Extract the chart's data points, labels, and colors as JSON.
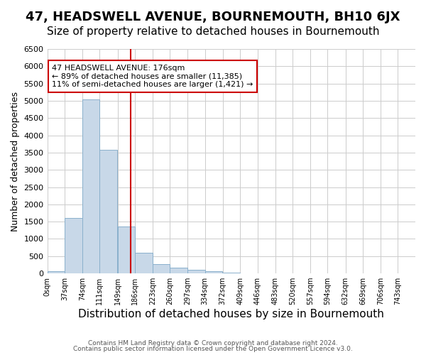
{
  "title": "47, HEADSWELL AVENUE, BOURNEMOUTH, BH10 6JX",
  "subtitle": "Size of property relative to detached houses in Bournemouth",
  "xlabel": "Distribution of detached houses by size in Bournemouth",
  "ylabel": "Number of detached properties",
  "footnote1": "Contains HM Land Registry data © Crown copyright and database right 2024.",
  "footnote2": "Contains public sector information licensed under the Open Government Licence v3.0.",
  "annotation_line1": "47 HEADSWELL AVENUE: 176sqm",
  "annotation_line2": "← 89% of detached houses are smaller (11,385)",
  "annotation_line3": "11% of semi-detached houses are larger (1,421) →",
  "property_size": 176,
  "bar_left_edges": [
    0,
    37,
    74,
    111,
    149,
    186,
    223,
    260,
    297,
    334,
    372,
    409,
    446,
    483,
    520,
    557,
    594,
    632,
    669,
    706,
    743
  ],
  "bar_values": [
    70,
    1600,
    5050,
    3580,
    1350,
    600,
    260,
    170,
    110,
    60,
    30,
    10,
    0,
    0,
    0,
    0,
    0,
    0,
    0,
    0
  ],
  "bar_color": "#c8d8e8",
  "bar_edge_color": "#8ab0cc",
  "vline_color": "#cc0000",
  "vline_x": 176,
  "annotation_box_color": "#cc0000",
  "ylim": [
    0,
    6500
  ],
  "yticks": [
    0,
    500,
    1000,
    1500,
    2000,
    2500,
    3000,
    3500,
    4000,
    4500,
    5000,
    5500,
    6000,
    6500
  ],
  "grid_color": "#cccccc",
  "background_color": "#ffffff",
  "title_fontsize": 13,
  "subtitle_fontsize": 11,
  "xlabel_fontsize": 11,
  "ylabel_fontsize": 9,
  "tick_labels": [
    "0sqm",
    "37sqm",
    "74sqm",
    "111sqm",
    "149sqm",
    "186sqm",
    "223sqm",
    "260sqm",
    "297sqm",
    "334sqm",
    "372sqm",
    "409sqm",
    "446sqm",
    "483sqm",
    "520sqm",
    "557sqm",
    "594sqm",
    "632sqm",
    "669sqm",
    "706sqm",
    "743sqm"
  ]
}
